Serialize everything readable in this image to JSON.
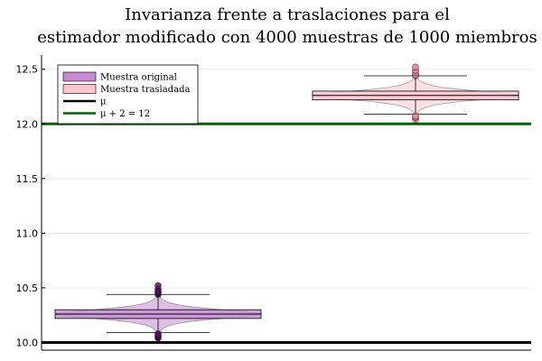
{
  "chart_data": {
    "type": "violin-box",
    "title_lines": [
      "Invarianza frente a traslaciones para el",
      "estimador modificado con 4000 muestras de 1000 miembros"
    ],
    "xlabel": "",
    "ylabel": "",
    "ylim": [
      9.93,
      12.63
    ],
    "yticks": [
      10.0,
      10.5,
      11.0,
      11.5,
      12.0,
      12.5
    ],
    "ytick_labels": [
      "10.0",
      "10.5",
      "11.0",
      "11.5",
      "12.0",
      "12.5"
    ],
    "grid": true,
    "legend_position": "top-left",
    "series": [
      {
        "name": "Muestra original",
        "color": "#b279c2",
        "fill_color": "#c58ad1",
        "outlier_color": "#5e0a6b",
        "whisker_low": 10.09,
        "q1": 10.22,
        "median": 10.26,
        "q3": 10.3,
        "whisker_high": 10.44,
        "violin_min": 10.05,
        "violin_max": 10.52,
        "outliers": [
          10.04,
          10.05,
          10.06,
          10.07,
          10.08,
          10.44,
          10.45,
          10.46,
          10.47,
          10.49,
          10.52
        ]
      },
      {
        "name": "Muestra trasladada",
        "color": "#ffc0cb",
        "fill_color": "#ffc6d0",
        "outlier_color": "#e88a9a",
        "whisker_low": 12.09,
        "q1": 12.22,
        "median": 12.26,
        "q3": 12.3,
        "whisker_high": 12.44,
        "violin_min": 12.05,
        "violin_max": 12.52,
        "outliers": [
          12.04,
          12.06,
          12.07,
          12.44,
          12.45,
          12.47,
          12.49,
          12.52
        ]
      }
    ],
    "reference_lines": [
      {
        "name": "μ",
        "value": 10.0,
        "color": "#000000"
      },
      {
        "name": "μ + 2 = 12",
        "value": 12.0,
        "color": "#006400"
      }
    ]
  }
}
